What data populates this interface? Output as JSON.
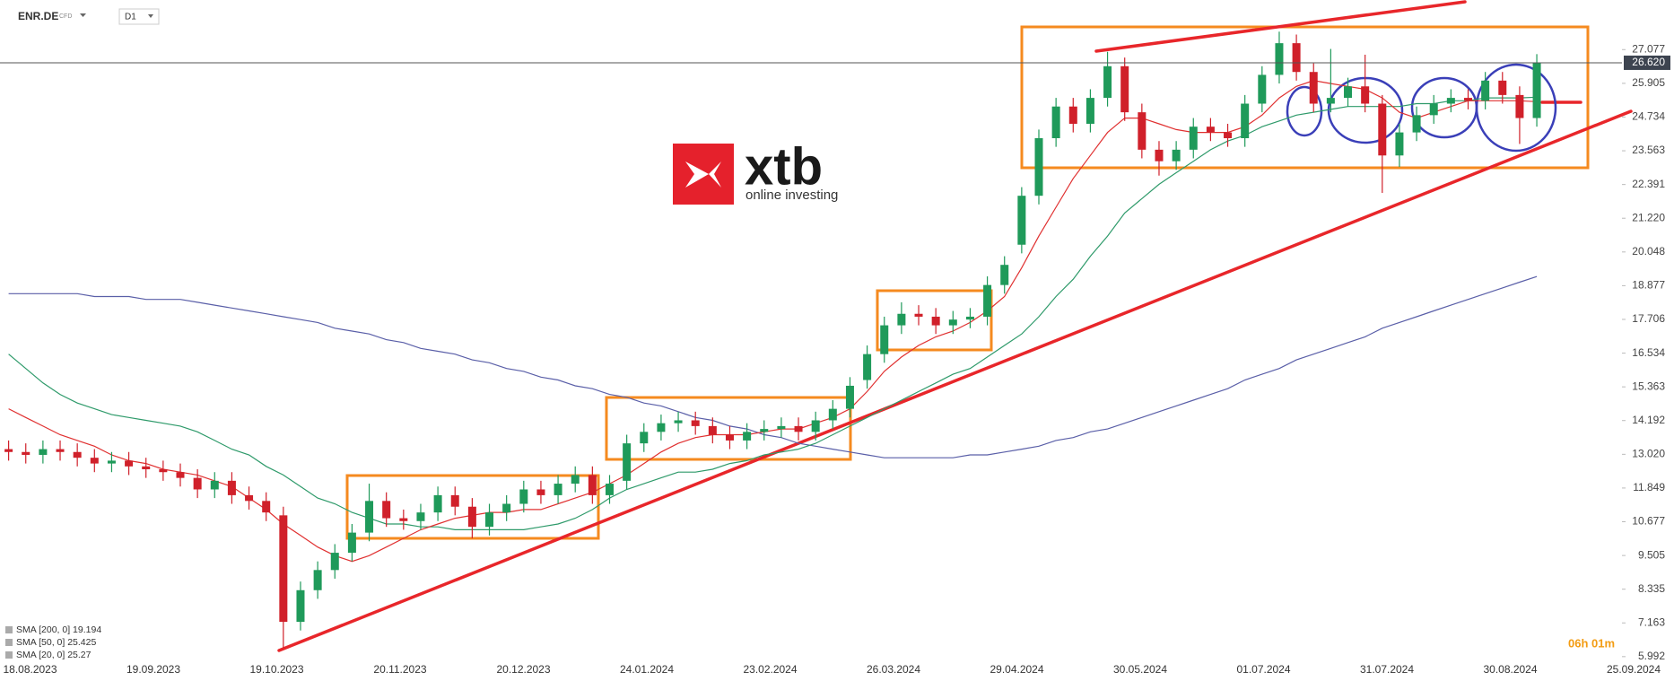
{
  "header": {
    "symbol": "ENR.DE",
    "instrument": "CFD",
    "interval": "D1"
  },
  "logo": {
    "name": "xtb",
    "tagline": "online investing"
  },
  "timer": "06h 01m",
  "chart_data": {
    "type": "candlestick",
    "up_color": "#1f9a5a",
    "down_color": "#d0202a",
    "ylim": [
      5.8,
      28.8
    ],
    "yticks": [
      5.992,
      7.163,
      8.335,
      9.505,
      10.677,
      11.849,
      {
        "value": 13.02,
        "label": "13.020"
      },
      14.192,
      15.363,
      16.534,
      17.706,
      18.877,
      20.048,
      {
        "value": 21.22,
        "label": "21.220"
      },
      22.391,
      23.563,
      24.734,
      25.905,
      27.077
    ],
    "date_labels": [
      "18.08.2023",
      "19.09.2023",
      "19.10.2023",
      "20.11.2023",
      "20.12.2023",
      "24.01.2024",
      "23.02.2024",
      "26.03.2024",
      "29.04.2024",
      "30.05.2024",
      "01.07.2024",
      "31.07.2024",
      "30.08.2024",
      "25.09.2024"
    ],
    "current_price": {
      "value": 26.62,
      "label": "26.620"
    },
    "open": [
      13.2,
      13.1,
      13.0,
      13.2,
      13.1,
      12.9,
      12.7,
      12.8,
      12.6,
      12.5,
      12.4,
      12.2,
      11.8,
      12.1,
      11.6,
      11.4,
      10.9,
      7.2,
      8.3,
      9.0,
      9.6,
      10.3,
      11.4,
      10.8,
      10.7,
      11.0,
      11.6,
      11.2,
      10.5,
      11.0,
      11.3,
      11.8,
      11.6,
      12.0,
      12.3,
      11.6,
      12.1,
      13.4,
      13.8,
      14.1,
      14.2,
      14.0,
      13.7,
      13.5,
      13.8,
      13.9,
      14.0,
      13.8,
      14.2,
      14.6,
      15.6,
      16.5,
      17.5,
      17.9,
      17.8,
      17.5,
      17.7,
      17.8,
      18.9,
      20.3,
      22.0,
      24.0,
      25.1,
      24.5,
      25.4,
      26.5,
      24.9,
      23.6,
      23.2,
      23.6,
      24.4,
      24.2,
      24.0,
      25.2,
      26.2,
      27.3,
      26.3,
      25.2,
      25.4,
      25.8,
      25.2,
      23.4,
      24.2,
      24.8,
      25.2,
      25.4,
      25.3,
      26.0,
      25.5,
      24.7
    ],
    "high": [
      13.5,
      13.4,
      13.5,
      13.5,
      13.4,
      13.2,
      13.1,
      13.1,
      12.9,
      12.8,
      12.7,
      12.5,
      12.4,
      12.4,
      11.9,
      11.7,
      11.2,
      8.6,
      9.3,
      9.9,
      10.6,
      12.0,
      11.7,
      11.1,
      11.3,
      11.9,
      11.9,
      11.5,
      11.3,
      11.6,
      12.1,
      12.1,
      12.3,
      12.6,
      12.6,
      12.3,
      13.7,
      14.1,
      14.4,
      14.5,
      14.5,
      14.3,
      14.0,
      14.1,
      14.2,
      14.3,
      14.3,
      14.5,
      14.9,
      15.7,
      16.8,
      17.8,
      18.3,
      18.2,
      18.1,
      18.0,
      18.1,
      19.2,
      19.9,
      22.3,
      24.3,
      25.4,
      25.4,
      25.7,
      27.0,
      26.8,
      25.2,
      23.9,
      23.9,
      24.7,
      24.7,
      24.5,
      25.5,
      26.5,
      27.7,
      27.6,
      26.6,
      27.1,
      26.1,
      26.9,
      25.5,
      24.5,
      25.1,
      25.5,
      25.7,
      25.7,
      26.3,
      26.3,
      25.8,
      26.92
    ],
    "low": [
      12.8,
      12.7,
      12.7,
      12.8,
      12.6,
      12.4,
      12.4,
      12.3,
      12.2,
      12.1,
      11.9,
      11.5,
      11.5,
      11.3,
      11.1,
      10.7,
      6.3,
      6.9,
      8.0,
      8.7,
      9.3,
      10.0,
      10.5,
      10.4,
      10.4,
      10.7,
      10.9,
      10.1,
      10.2,
      10.7,
      11.0,
      11.3,
      11.3,
      11.7,
      11.3,
      11.3,
      11.8,
      13.1,
      13.5,
      13.8,
      13.7,
      13.4,
      13.2,
      13.2,
      13.5,
      13.6,
      13.5,
      13.5,
      13.9,
      14.3,
      15.3,
      16.2,
      17.2,
      17.5,
      17.2,
      17.2,
      17.4,
      17.5,
      18.6,
      20.0,
      21.7,
      23.7,
      24.2,
      24.2,
      25.1,
      24.6,
      23.3,
      22.7,
      22.9,
      23.3,
      23.9,
      23.7,
      23.7,
      24.9,
      25.9,
      26.0,
      24.9,
      24.9,
      25.1,
      24.9,
      22.1,
      23.0,
      23.9,
      24.5,
      24.9,
      25.0,
      25.0,
      25.2,
      23.8,
      24.4
    ],
    "close": [
      13.1,
      13.0,
      13.2,
      13.1,
      12.9,
      12.7,
      12.8,
      12.6,
      12.5,
      12.4,
      12.2,
      11.8,
      12.1,
      11.6,
      11.4,
      11.0,
      7.2,
      8.3,
      9.0,
      9.6,
      10.3,
      11.4,
      10.8,
      10.7,
      11.0,
      11.6,
      11.2,
      10.5,
      11.0,
      11.3,
      11.8,
      11.6,
      12.0,
      12.3,
      11.6,
      12.0,
      13.4,
      13.8,
      14.1,
      14.2,
      14.0,
      13.7,
      13.5,
      13.8,
      13.9,
      14.0,
      13.8,
      14.2,
      14.6,
      15.4,
      16.5,
      17.5,
      17.9,
      17.8,
      17.5,
      17.7,
      17.8,
      18.9,
      19.6,
      22.0,
      24.0,
      25.1,
      24.5,
      25.4,
      26.5,
      24.9,
      23.6,
      23.2,
      23.6,
      24.4,
      24.2,
      24.0,
      25.2,
      26.2,
      27.3,
      26.3,
      25.2,
      25.4,
      25.8,
      25.2,
      23.4,
      24.2,
      24.8,
      25.2,
      25.4,
      25.3,
      26.0,
      25.5,
      24.7,
      26.62
    ],
    "series": [
      {
        "name": "SMA [200, 0]",
        "last": 19.194,
        "color": "#5a5fa8",
        "values": [
          18.6,
          18.6,
          18.6,
          18.6,
          18.6,
          18.5,
          18.5,
          18.5,
          18.4,
          18.4,
          18.4,
          18.3,
          18.2,
          18.1,
          18.0,
          17.9,
          17.8,
          17.7,
          17.6,
          17.4,
          17.3,
          17.2,
          17.0,
          16.9,
          16.7,
          16.6,
          16.5,
          16.3,
          16.2,
          16.0,
          15.9,
          15.7,
          15.6,
          15.4,
          15.3,
          15.1,
          15.0,
          14.8,
          14.7,
          14.5,
          14.3,
          14.2,
          14.0,
          13.9,
          13.7,
          13.6,
          13.4,
          13.3,
          13.2,
          13.1,
          13.0,
          12.9,
          12.9,
          12.9,
          12.9,
          12.9,
          13.0,
          13.0,
          13.1,
          13.2,
          13.3,
          13.5,
          13.6,
          13.8,
          13.9,
          14.1,
          14.3,
          14.5,
          14.7,
          14.9,
          15.1,
          15.3,
          15.6,
          15.8,
          16.0,
          16.3,
          16.5,
          16.7,
          16.9,
          17.1,
          17.4,
          17.6,
          17.8,
          18.0,
          18.2,
          18.4,
          18.6,
          18.8,
          19.0,
          19.194
        ]
      },
      {
        "name": "SMA [50, 0]",
        "last": 25.425,
        "color": "#2e9a6a",
        "values": [
          16.5,
          16.0,
          15.5,
          15.1,
          14.8,
          14.6,
          14.4,
          14.3,
          14.2,
          14.1,
          14.0,
          13.8,
          13.5,
          13.2,
          13.0,
          12.6,
          12.3,
          11.9,
          11.5,
          11.3,
          11.0,
          10.8,
          10.6,
          10.6,
          10.5,
          10.5,
          10.4,
          10.4,
          10.4,
          10.4,
          10.4,
          10.5,
          10.6,
          10.8,
          11.1,
          11.5,
          11.8,
          12.0,
          12.2,
          12.4,
          12.4,
          12.5,
          12.7,
          12.8,
          13.0,
          13.1,
          13.2,
          13.4,
          13.7,
          14.0,
          14.3,
          14.6,
          14.9,
          15.2,
          15.5,
          15.8,
          16.0,
          16.4,
          16.8,
          17.2,
          17.8,
          18.5,
          19.1,
          19.9,
          20.6,
          21.4,
          21.9,
          22.4,
          22.8,
          23.2,
          23.6,
          23.9,
          24.1,
          24.4,
          24.6,
          24.8,
          24.9,
          25.0,
          25.1,
          25.1,
          25.1,
          25.1,
          25.2,
          25.2,
          25.3,
          25.3,
          25.4,
          25.4,
          25.4,
          25.425
        ]
      },
      {
        "name": "SMA [20, 0]",
        "last": 25.27,
        "color": "#e03030",
        "values": [
          14.6,
          14.3,
          14.0,
          13.7,
          13.5,
          13.3,
          13.0,
          12.8,
          12.7,
          12.5,
          12.4,
          12.3,
          12.1,
          11.9,
          11.5,
          11.1,
          10.6,
          10.2,
          9.8,
          9.5,
          9.3,
          9.5,
          9.8,
          10.1,
          10.4,
          10.6,
          10.8,
          10.9,
          11.0,
          11.0,
          11.1,
          11.1,
          11.3,
          11.5,
          11.7,
          12.0,
          12.3,
          12.7,
          13.1,
          13.4,
          13.6,
          13.7,
          13.7,
          13.7,
          13.8,
          13.9,
          13.9,
          14.1,
          14.3,
          14.6,
          15.2,
          15.9,
          16.4,
          16.8,
          17.1,
          17.3,
          17.6,
          18.0,
          18.5,
          19.5,
          20.6,
          21.6,
          22.6,
          23.4,
          24.2,
          24.7,
          24.7,
          24.5,
          24.3,
          24.2,
          24.2,
          24.2,
          24.4,
          24.8,
          25.4,
          25.8,
          26.0,
          25.9,
          25.8,
          25.7,
          25.4,
          24.9,
          24.7,
          24.9,
          25.1,
          25.3,
          25.3,
          25.3,
          25.3,
          25.27
        ]
      }
    ]
  }
}
